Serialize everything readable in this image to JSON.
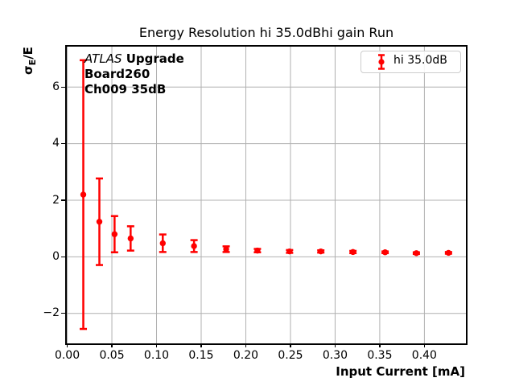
{
  "title": "Energy Resolution hi 35.0dBhi gain Run",
  "axis": {
    "xlabel": "Input Current [mA]",
    "ylabel_sigma": "σ",
    "ylabel_sub": "E",
    "ylabel_rest": "/E"
  },
  "annotation": {
    "line1_italic": "ATLAS",
    "line1_bold": " Upgrade",
    "line2": "Board260",
    "line3": "Ch009 35dB"
  },
  "legend": {
    "label": "hi 35.0dB"
  },
  "colors": {
    "series": "#ff0000",
    "grid": "#b0b0b0",
    "spine": "#000000",
    "legend_border": "#cccccc"
  },
  "chart_data": {
    "type": "scatter",
    "title": "Energy Resolution hi 35.0dBhi gain Run",
    "xlabel": "Input Current [mA]",
    "ylabel": "σ_E/E",
    "grid": true,
    "legend_position": "upper right",
    "xlim": [
      -0.0005,
      0.4465
    ],
    "ylim": [
      -3.06,
      7.43
    ],
    "xticks": [
      0.0,
      0.05,
      0.1,
      0.15,
      0.2,
      0.25,
      0.3,
      0.35,
      0.4
    ],
    "xtick_labels": [
      "0.00",
      "0.05",
      "0.10",
      "0.15",
      "0.20",
      "0.25",
      "0.30",
      "0.35",
      "0.40"
    ],
    "yticks": [
      -2,
      0,
      2,
      4,
      6
    ],
    "ytick_labels": [
      "−2",
      "0",
      "2",
      "4",
      "6"
    ],
    "series": [
      {
        "name": "hi 35.0dB",
        "color": "#ff0000",
        "marker": "circle",
        "x": [
          0.018,
          0.036,
          0.053,
          0.071,
          0.107,
          0.142,
          0.178,
          0.213,
          0.249,
          0.284,
          0.32,
          0.356,
          0.391,
          0.427
        ],
        "y": [
          2.2,
          1.24,
          0.8,
          0.65,
          0.48,
          0.38,
          0.27,
          0.22,
          0.19,
          0.19,
          0.17,
          0.16,
          0.13,
          0.14
        ],
        "yerr": [
          4.75,
          1.53,
          0.64,
          0.43,
          0.31,
          0.21,
          0.1,
          0.06,
          0.05,
          0.04,
          0.04,
          0.03,
          0.03,
          0.03
        ]
      }
    ]
  }
}
